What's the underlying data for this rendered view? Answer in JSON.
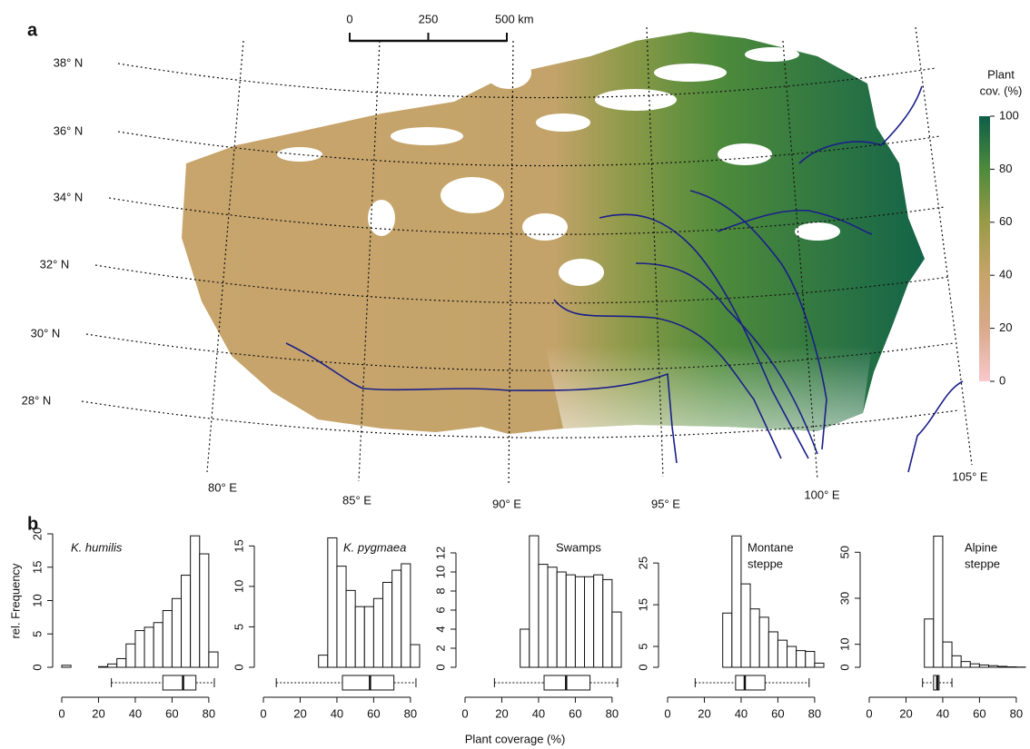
{
  "panel_a": {
    "label": "a",
    "scale_bar": {
      "lim": [
        0,
        500
      ],
      "ticks": [
        0,
        250,
        {
          "value": 500,
          "label": "500 km"
        }
      ]
    },
    "latitudes": [
      "38° N",
      "36° N",
      "34° N",
      "32° N",
      "30° N",
      "28° N"
    ],
    "longitudes": [
      "80° E",
      "85° E",
      "90° E",
      "95° E",
      "100° E",
      "105° E"
    ],
    "legend": {
      "title": [
        "Plant",
        "cov. (%)"
      ],
      "lim": [
        0,
        100
      ],
      "ticks": [
        0,
        20,
        40,
        60,
        80,
        100
      ],
      "colors": [
        "#f9c8cc",
        "#d8a98a",
        "#c6a46a",
        "#9a9a48",
        "#4e8a3c",
        "#0e5e48"
      ]
    }
  },
  "panel_b": {
    "label": "b",
    "y_label": "rel. Frequency",
    "x_label": "Plant coverage (%)"
  },
  "chart_data": [
    {
      "type": "histogram",
      "title": [
        "K. humilis"
      ],
      "title_font_style": "italic",
      "color": "#ffffff",
      "bins": [
        0,
        5,
        10,
        15,
        20,
        25,
        30,
        35,
        40,
        45,
        50,
        55,
        60,
        65,
        70,
        75,
        80,
        85
      ],
      "values": [
        0.3,
        0,
        0,
        0,
        0.1,
        0.5,
        1.3,
        3.5,
        5.5,
        6,
        6.7,
        8.5,
        10.3,
        13.8,
        19.7,
        17,
        2.3
      ],
      "xlim": [
        0,
        85
      ],
      "xticks": [
        0,
        20,
        40,
        60,
        80
      ],
      "ylim": [
        0,
        20
      ],
      "yticks": [
        0,
        5,
        10,
        15,
        20
      ],
      "box": {
        "whislo": 27,
        "q1": 55,
        "med": 66,
        "q3": 73,
        "whishi": 83
      }
    },
    {
      "type": "histogram",
      "title": [
        "K. pygmaea"
      ],
      "title_font_style": "italic",
      "color": "#ffffff",
      "bins": [
        0,
        5,
        10,
        15,
        20,
        25,
        30,
        35,
        40,
        45,
        50,
        55,
        60,
        65,
        70,
        75,
        80,
        85
      ],
      "values": [
        0,
        0,
        0,
        0,
        0,
        0,
        1.5,
        16,
        12.5,
        9.5,
        7.5,
        7.5,
        8.5,
        10.5,
        12,
        12.8,
        2.8
      ],
      "xlim": [
        0,
        85
      ],
      "xticks": [
        0,
        20,
        40,
        60,
        80
      ],
      "ylim": [
        0,
        16.5
      ],
      "yticks": [
        0,
        5,
        10,
        15
      ],
      "box": {
        "whislo": 7,
        "q1": 43,
        "med": 58,
        "q3": 71,
        "whishi": 83
      }
    },
    {
      "type": "histogram",
      "title": [
        "Swamps"
      ],
      "title_font_style": "normal",
      "color": "#ffffff",
      "bins": [
        0,
        5,
        10,
        15,
        20,
        25,
        30,
        35,
        40,
        45,
        50,
        55,
        60,
        65,
        70,
        75,
        80,
        85
      ],
      "values": [
        0,
        0,
        0,
        0,
        0,
        0,
        4,
        13.8,
        10.8,
        10.5,
        10,
        9.7,
        9.5,
        9.5,
        9.7,
        9.2,
        5.8
      ],
      "xlim": [
        0,
        85
      ],
      "xticks": [
        0,
        20,
        40,
        60,
        80
      ],
      "ylim": [
        0,
        14
      ],
      "yticks": [
        0,
        2,
        4,
        6,
        8,
        10,
        12
      ],
      "box": {
        "whislo": 16,
        "q1": 43,
        "med": 55,
        "q3": 68,
        "whishi": 83
      }
    },
    {
      "type": "histogram",
      "title": [
        "Montane",
        "steppe"
      ],
      "title_font_style": "normal",
      "color": "#ffffff",
      "bins": [
        0,
        5,
        10,
        15,
        20,
        25,
        30,
        35,
        40,
        45,
        50,
        55,
        60,
        65,
        70,
        75,
        80,
        85
      ],
      "values": [
        0,
        0,
        0,
        0,
        0,
        0,
        13,
        31.5,
        20,
        14,
        12,
        8.5,
        6.5,
        5,
        4,
        3.8,
        1
      ],
      "xlim": [
        0,
        85
      ],
      "xticks": [
        0,
        20,
        40,
        60,
        80
      ],
      "ylim": [
        0,
        32
      ],
      "yticks": [
        0,
        5,
        15,
        25
      ],
      "box": {
        "whislo": 15,
        "q1": 37,
        "med": 42,
        "q3": 53,
        "whishi": 77
      }
    },
    {
      "type": "histogram",
      "title": [
        "Alpine",
        "steppe"
      ],
      "title_font_style": "normal",
      "color": "#ffffff",
      "bins": [
        0,
        5,
        10,
        15,
        20,
        25,
        30,
        35,
        40,
        45,
        50,
        55,
        60,
        65,
        70,
        75,
        80,
        85
      ],
      "values": [
        0,
        0,
        0,
        0,
        0,
        0,
        21,
        57,
        11,
        5,
        2.5,
        1.5,
        1,
        0.7,
        0.4,
        0.2,
        0.1
      ],
      "xlim": [
        0,
        85
      ],
      "xticks": [
        0,
        20,
        40,
        60,
        80
      ],
      "ylim": [
        0,
        58
      ],
      "yticks": [
        0,
        10,
        30,
        50
      ],
      "box": {
        "whislo": 29,
        "q1": 35,
        "med": 37,
        "q3": 38,
        "whishi": 45
      }
    }
  ]
}
